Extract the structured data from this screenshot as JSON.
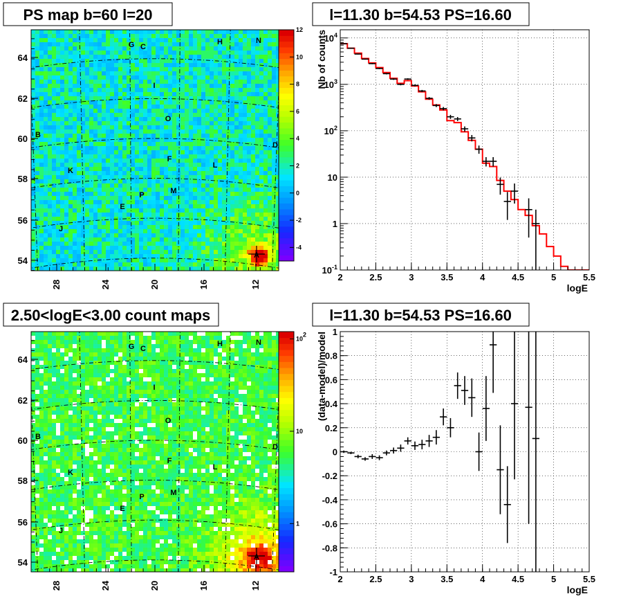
{
  "chart_data": [
    {
      "id": "ps_map",
      "type": "heatmap",
      "title": "PS map b=60 l=20",
      "x_ticks": [
        "28",
        "24",
        "20",
        "16",
        "12"
      ],
      "y_ticks": [
        "54",
        "56",
        "58",
        "60",
        "62",
        "64"
      ],
      "colorbar": {
        "ticks": [
          "-4",
          "-2",
          "0",
          "2",
          "4",
          "6",
          "8",
          "10",
          "12"
        ],
        "range": [
          -5,
          12
        ],
        "scale": "linear"
      },
      "labels": [
        "G",
        "C",
        "H",
        "N",
        "I",
        "O",
        "B",
        "D",
        "F",
        "L",
        "K",
        "M",
        "P",
        "E",
        "J",
        "A"
      ],
      "grid": true
    },
    {
      "id": "spectrum",
      "type": "line",
      "title": "l=11.30 b=54.53 PS=16.60",
      "xlabel": "logE",
      "ylabel": "Nb of counts",
      "xlim": [
        2,
        5.5
      ],
      "ylim": [
        0.1,
        15000
      ],
      "yscale": "log",
      "x_ticks": [
        "2",
        "2.5",
        "3",
        "3.5",
        "4",
        "4.5",
        "5",
        "5.5"
      ],
      "y_ticks": [
        "10^{-1}",
        "1",
        "10",
        "10^{2}",
        "10^{3}",
        "10^{4}"
      ],
      "grid": true,
      "series": [
        {
          "style": "points-errorbars",
          "color": "#000000",
          "x": [
            2.05,
            2.15,
            2.25,
            2.35,
            2.45,
            2.55,
            2.65,
            2.75,
            2.85,
            2.95,
            3.05,
            3.15,
            3.25,
            3.35,
            3.45,
            3.55,
            3.65,
            3.75,
            3.85,
            3.95,
            4.05,
            4.15,
            4.25,
            4.35,
            4.45,
            4.55,
            4.65,
            4.75
          ],
          "y": [
            7500,
            6000,
            4500,
            3500,
            2800,
            2200,
            1700,
            1300,
            1000,
            1300,
            950,
            720,
            500,
            350,
            300,
            200,
            180,
            110,
            70,
            40,
            22,
            22,
            7,
            3,
            5,
            null,
            2,
            1
          ],
          "yerr": [
            120,
            110,
            95,
            85,
            75,
            65,
            58,
            52,
            45,
            50,
            44,
            38,
            32,
            26,
            25,
            20,
            18,
            14,
            11,
            8,
            5,
            5,
            2.8,
            1.8,
            2.3,
            null,
            1.5,
            1.0
          ]
        },
        {
          "style": "step",
          "color": "#ff0000",
          "edges": [
            2.0,
            2.1,
            2.2,
            2.3,
            2.4,
            2.5,
            2.6,
            2.7,
            2.8,
            2.9,
            3.0,
            3.1,
            3.2,
            3.3,
            3.4,
            3.5,
            3.6,
            3.7,
            3.8,
            3.9,
            4.0,
            4.1,
            4.2,
            4.3,
            4.4,
            4.5,
            4.6,
            4.7,
            4.8,
            4.9,
            5.0,
            5.1,
            5.2,
            5.3,
            5.4,
            5.5
          ],
          "values": [
            7500,
            6000,
            4700,
            3600,
            2900,
            2300,
            1800,
            1350,
            1050,
            1200,
            920,
            690,
            480,
            360,
            280,
            165,
            150,
            95,
            62,
            40,
            20,
            17,
            8.5,
            5,
            3.3,
            2,
            1.5,
            0.9,
            0.6,
            0.32,
            0.2,
            0.12,
            0.1,
            0.1,
            0.1
          ]
        }
      ]
    },
    {
      "id": "count_map",
      "type": "heatmap",
      "title": "2.50<logE<3.00 count maps",
      "x_ticks": [
        "28",
        "24",
        "20",
        "16",
        "12"
      ],
      "y_ticks": [
        "54",
        "56",
        "58",
        "60",
        "62",
        "64"
      ],
      "colorbar": {
        "ticks": [
          "1",
          "10",
          "10^{2}"
        ],
        "range": [
          0.3,
          120
        ],
        "scale": "log"
      },
      "labels": [
        "G",
        "C",
        "H",
        "N",
        "I",
        "O",
        "B",
        "D",
        "F",
        "L",
        "K",
        "M",
        "P",
        "E",
        "J",
        "A"
      ],
      "grid": true
    },
    {
      "id": "residuals",
      "type": "scatter",
      "title": "l=11.30 b=54.53 PS=16.60",
      "xlabel": "logE",
      "ylabel": "(data-model)/model",
      "xlim": [
        2,
        5.5
      ],
      "ylim": [
        -1,
        1
      ],
      "x_ticks": [
        "2",
        "2.5",
        "3",
        "3.5",
        "4",
        "4.5",
        "5",
        "5.5"
      ],
      "y_ticks": [
        "-1",
        "-0.8",
        "-0.6",
        "-0.4",
        "-0.2",
        "0",
        "0.2",
        "0.4",
        "0.6",
        "0.8",
        "1"
      ],
      "grid": true,
      "series": [
        {
          "style": "points-errorbars",
          "color": "#000000",
          "x": [
            2.05,
            2.15,
            2.25,
            2.35,
            2.45,
            2.55,
            2.65,
            2.75,
            2.85,
            2.95,
            3.05,
            3.15,
            3.25,
            3.35,
            3.45,
            3.55,
            3.65,
            3.75,
            3.85,
            3.95,
            4.05,
            4.15,
            4.25,
            4.35,
            4.45,
            4.65,
            4.75
          ],
          "y": [
            0.0,
            -0.01,
            -0.04,
            -0.06,
            -0.04,
            -0.05,
            -0.01,
            0.01,
            0.03,
            0.09,
            0.05,
            0.06,
            0.09,
            0.12,
            0.29,
            0.2,
            0.55,
            0.51,
            0.45,
            0.0,
            0.36,
            0.89,
            -0.15,
            -0.44,
            0.4,
            0.37,
            0.11
          ],
          "yerr": [
            0.01,
            0.01,
            0.015,
            0.015,
            0.02,
            0.02,
            0.02,
            0.025,
            0.03,
            0.03,
            0.035,
            0.04,
            0.05,
            0.06,
            0.07,
            0.08,
            0.11,
            0.12,
            0.16,
            0.16,
            0.27,
            0.4,
            0.37,
            0.32,
            0.63,
            0.97,
            1.2
          ]
        }
      ]
    }
  ]
}
